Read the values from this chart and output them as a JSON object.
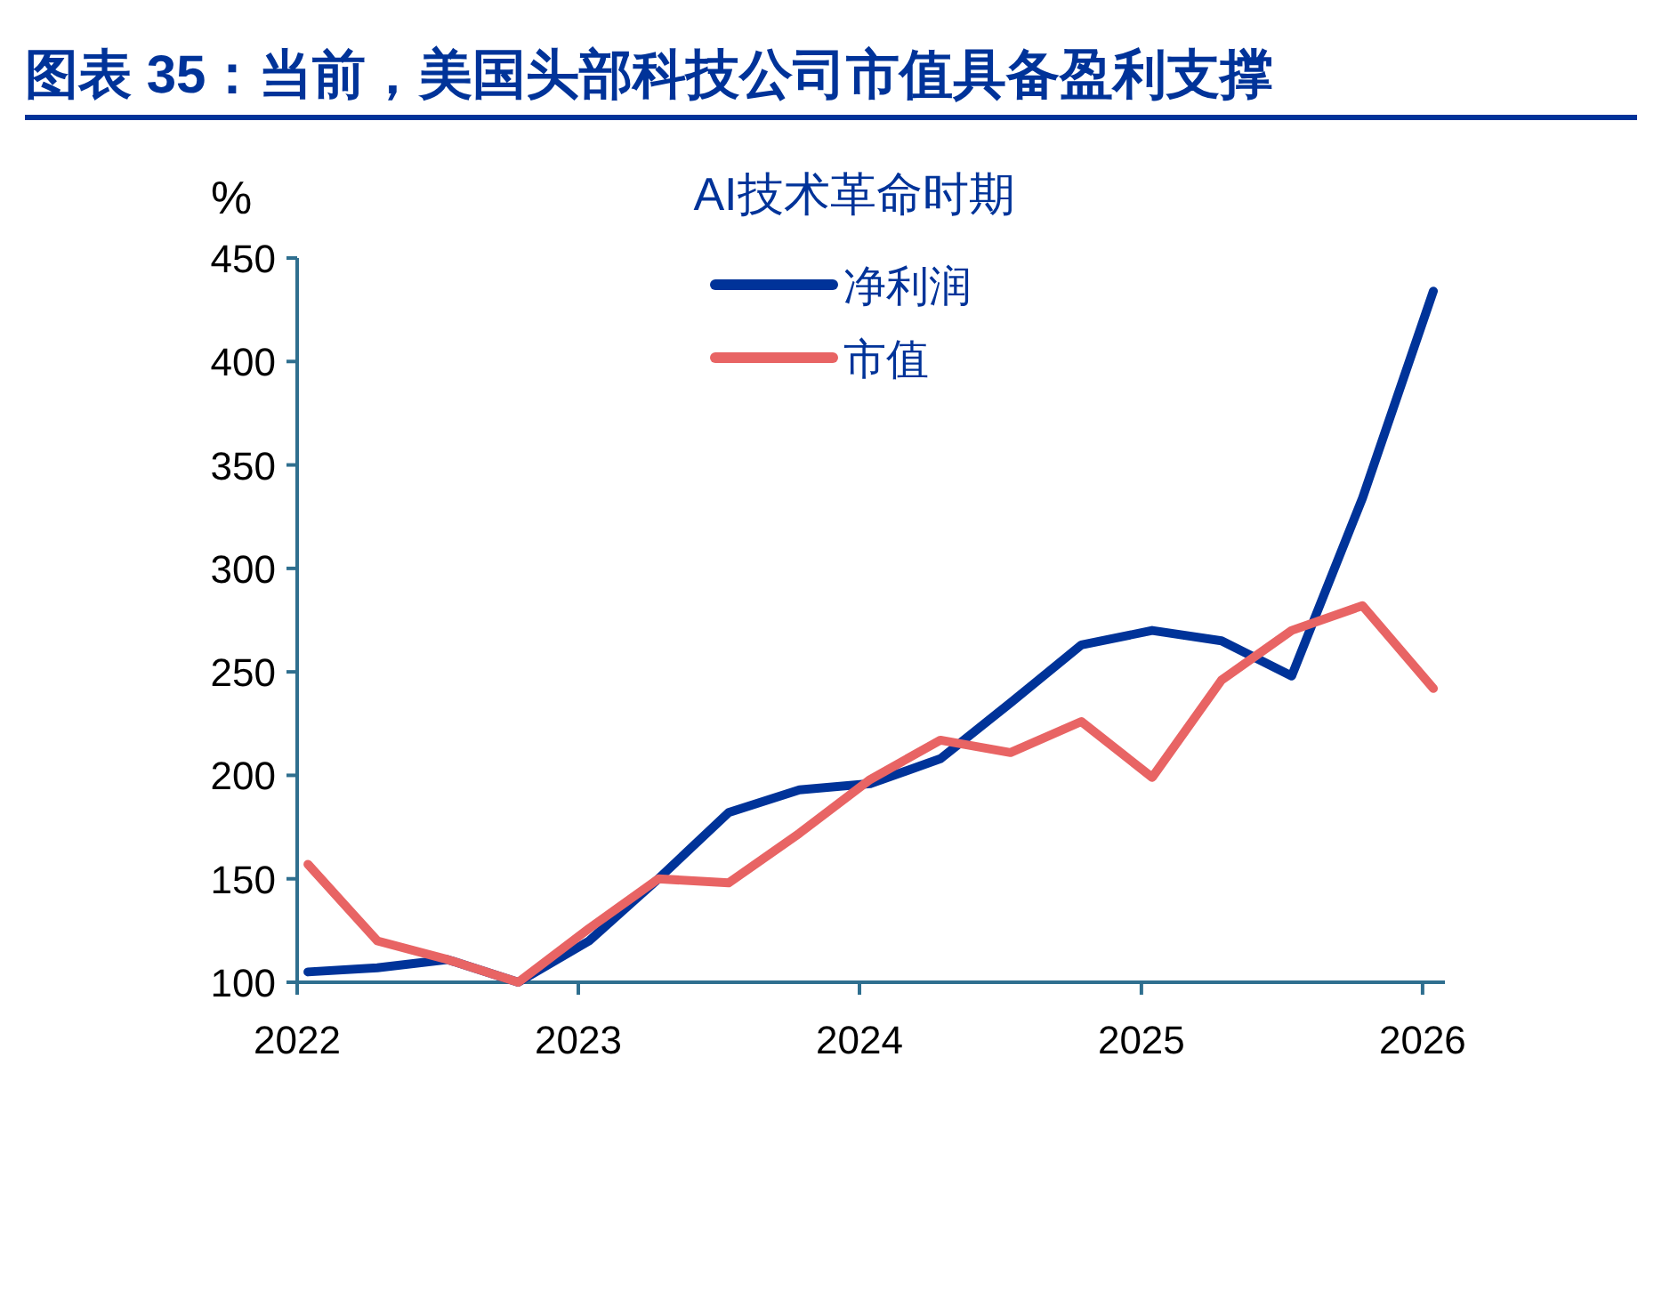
{
  "chart_data": {
    "type": "line",
    "title": "图表 35：当前，美国头部科技公司市值具备盈利支撑",
    "ylabel": "%",
    "legend_title": "AI技术革命时期",
    "legend": "top right",
    "x": [
      "2022-01-15",
      "2022-04-15",
      "2022-07-15",
      "2022-10-15",
      "2023-01-15",
      "2023-04-15",
      "2023-07-15",
      "2023-10-15",
      "2024-01-15",
      "2024-04-15",
      "2024-07-15",
      "2024-10-15",
      "2025-01-15",
      "2025-04-15",
      "2025-07-15",
      "2025-10-15",
      "2026-01-15"
    ],
    "series": [
      {
        "name": "净利润",
        "color": "#003399",
        "values": [
          105,
          107,
          111,
          100,
          120,
          150,
          182,
          193,
          196,
          208,
          235,
          263,
          270,
          265,
          248,
          334,
          434
        ]
      },
      {
        "name": "市值",
        "color": "#e86464",
        "values": [
          157,
          120,
          111,
          100,
          126,
          150,
          148,
          172,
          198,
          217,
          211,
          226,
          199,
          246,
          270,
          282,
          242
        ]
      }
    ],
    "xlim": [
      "2022-01-01",
      "2026-01-30"
    ],
    "xticks": [
      {
        "value": "2022-01-01",
        "label": "2022"
      },
      {
        "value": "2023-01-01",
        "label": "2023"
      },
      {
        "value": "2024-01-01",
        "label": "2024"
      },
      {
        "value": "2025-01-01",
        "label": "2025"
      },
      {
        "value": "2026-01-01",
        "label": "2026"
      }
    ],
    "ylim": [
      100,
      450
    ],
    "yticks": [
      100,
      150,
      200,
      250,
      300,
      350,
      400,
      450
    ]
  }
}
